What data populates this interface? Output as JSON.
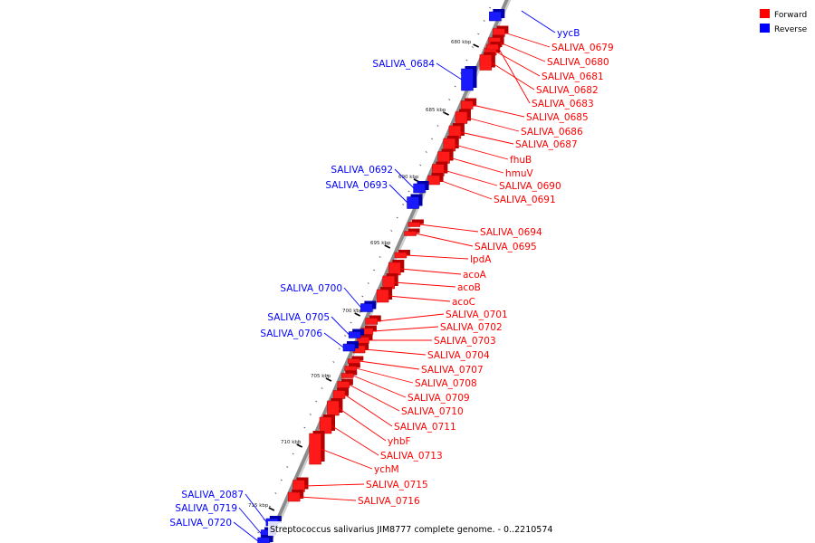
{
  "legend": {
    "forward": {
      "label": "Forward",
      "color": "#ff0000"
    },
    "reverse": {
      "label": "Reverse",
      "color": "#0000ff"
    }
  },
  "caption": "Streptococcus salivarius JIM8777 complete genome. - 0..2210574",
  "ruler_ticks": [
    "680 kbp",
    "685 kbp",
    "690 kbp",
    "695 kbp",
    "700 kbp",
    "705 kbp",
    "710 kbp",
    "715 kbp"
  ],
  "features_forward": [
    "SALIVA_0679",
    "SALIVA_0680",
    "SALIVA_0681",
    "SALIVA_0682",
    "SALIVA_0683",
    "SALIVA_0685",
    "SALIVA_0686",
    "SALIVA_0687",
    "fhuB",
    "hmuV",
    "SALIVA_0690",
    "SALIVA_0691",
    "SALIVA_0694",
    "SALIVA_0695",
    "lpdA",
    "acoA",
    "acoB",
    "acoC",
    "SALIVA_0701",
    "SALIVA_0702",
    "SALIVA_0703",
    "SALIVA_0704",
    "SALIVA_0707",
    "SALIVA_0708",
    "SALIVA_0709",
    "SALIVA_0710",
    "SALIVA_0711",
    "yhbF",
    "SALIVA_0713",
    "ychM",
    "SALIVA_0715",
    "SALIVA_0716"
  ],
  "features_reverse": [
    "yycB",
    "SALIVA_0684",
    "SALIVA_0692",
    "SALIVA_0693",
    "SALIVA_0700",
    "SALIVA_0705",
    "SALIVA_0706",
    "SALIVA_2087",
    "SALIVA_0719",
    "SALIVA_0720"
  ]
}
